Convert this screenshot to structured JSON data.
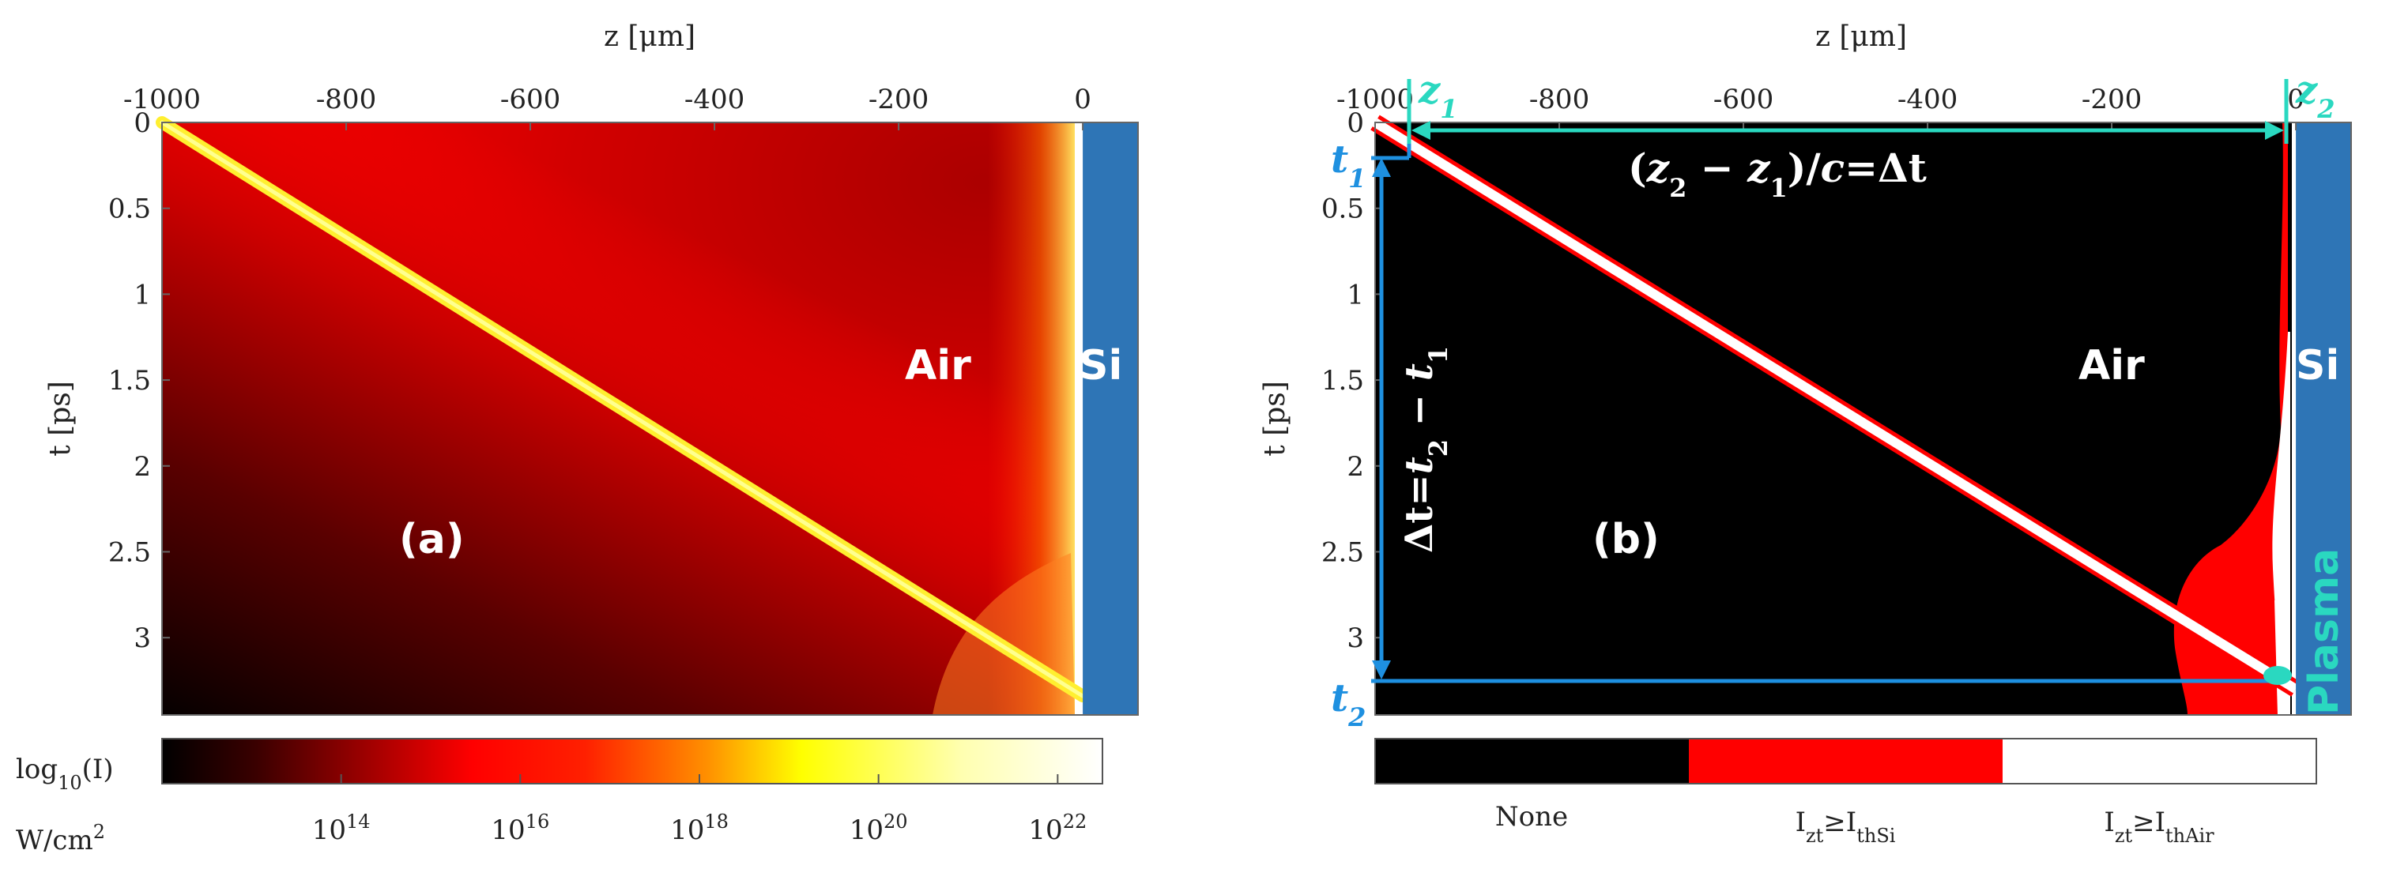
{
  "chart_data": [
    {
      "type": "heatmap",
      "panel_label": "(a)",
      "xlabel": "z [μm]",
      "ylabel": "t [ps]",
      "xlim": [
        -1000,
        60
      ],
      "ylim": [
        0,
        3.45
      ],
      "x_ticks": [
        "-1000",
        "-800",
        "-600",
        "-400",
        "-200",
        "0"
      ],
      "x_tick_values": [
        -1000,
        -800,
        -600,
        -400,
        -200,
        0
      ],
      "y_ticks": [
        "0",
        "0.5",
        "1",
        "1.5",
        "2",
        "2.5",
        "3"
      ],
      "y_tick_values": [
        0,
        0.5,
        1,
        1.5,
        2,
        2.5,
        3
      ],
      "regions": {
        "air": "Air",
        "si": "Si"
      },
      "pulse_line": {
        "z": [
          -1000,
          0
        ],
        "t": [
          0,
          3.34
        ]
      },
      "colorbar": {
        "label_line1": "log",
        "label_sub": "10",
        "label_line1_end": "(I)",
        "units": "W/cm",
        "units_sup": "2",
        "ticks": [
          {
            "base": "10",
            "exp": "14",
            "value": 14
          },
          {
            "base": "10",
            "exp": "16",
            "value": 16
          },
          {
            "base": "10",
            "exp": "18",
            "value": 18
          },
          {
            "base": "10",
            "exp": "20",
            "value": 20
          },
          {
            "base": "10",
            "exp": "22",
            "value": 22
          }
        ],
        "range": [
          12,
          22.5
        ],
        "colormap": "hot"
      }
    },
    {
      "type": "heatmap",
      "panel_label": "(b)",
      "xlabel": "z [μm]",
      "ylabel": "t [ps]",
      "xlim": [
        -1000,
        60
      ],
      "ylim": [
        0,
        3.45
      ],
      "x_ticks": [
        "-1000",
        "-800",
        "-600",
        "-400",
        "-200",
        "0"
      ],
      "x_tick_values": [
        -1000,
        -800,
        -600,
        -400,
        -200,
        0
      ],
      "y_ticks": [
        "0",
        "0.5",
        "1",
        "1.5",
        "2",
        "2.5",
        "3"
      ],
      "y_tick_values": [
        0,
        0.5,
        1,
        1.5,
        2,
        2.5,
        3
      ],
      "regions": {
        "air": "Air",
        "si": "Si",
        "plasma": "Plasma"
      },
      "pulse_line": {
        "z": [
          -1000,
          0
        ],
        "t": [
          0,
          3.3
        ]
      },
      "annotations": {
        "z1": {
          "sym": "z",
          "sub": "1",
          "z": -960
        },
        "z2": {
          "sym": "z",
          "sub": "2",
          "z": 0
        },
        "t1": {
          "sym": "t",
          "sub": "1",
          "t": 0.2
        },
        "t2": {
          "sym": "t",
          "sub": "2",
          "t": 3.2
        },
        "horizontal_eq": {
          "open": "(",
          "za": "z",
          "za_sub": "2",
          "minus": " − ",
          "zb": "z",
          "zb_sub": "1",
          "close": ")/",
          "c": "c",
          "eq": "=Δt"
        },
        "vertical_eq": {
          "lead": "Δt=",
          "ta": "t",
          "ta_sub": "2",
          "minus": " − ",
          "tb": "t",
          "tb_sub": "1"
        }
      },
      "colorbar": {
        "categories": [
          {
            "label": "None",
            "color": "#000000"
          },
          {
            "label_main": "I",
            "label_sub": "zt",
            "label_rel": "≥I",
            "label_sub2": "thSi",
            "color": "#ff0000"
          },
          {
            "label_main": "I",
            "label_sub": "zt",
            "label_rel": "≥I",
            "label_sub2": "thAir",
            "color": "#ffffff"
          }
        ]
      }
    }
  ],
  "colors": {
    "silicon": "#2e75b6",
    "annotation_cyan": "#2ad8c0",
    "annotation_blue": "#1e90e0",
    "red": "#ff0000"
  }
}
